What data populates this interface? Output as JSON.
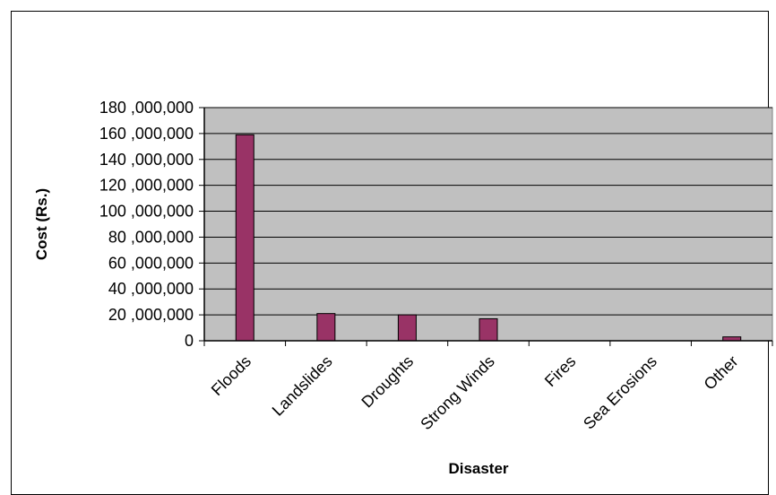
{
  "chart_data": {
    "type": "bar",
    "title": "",
    "xlabel": "Disaster",
    "ylabel": "Cost (Rs.)",
    "categories": [
      "Floods",
      "Landslides",
      "Droughts",
      "Strong Winds",
      "Fires",
      "Sea Erosions",
      "Other"
    ],
    "values": [
      159000000,
      21000000,
      20000000,
      17000000,
      0,
      0,
      3000000
    ],
    "ylim": [
      0,
      180000000
    ],
    "ytick_step": 20000000,
    "grid": true,
    "legend": "none",
    "colors": {
      "bar_fill": "#993366",
      "bar_stroke": "#000000",
      "plot_background": "#c0c0c0",
      "gridline": "#000000"
    }
  }
}
